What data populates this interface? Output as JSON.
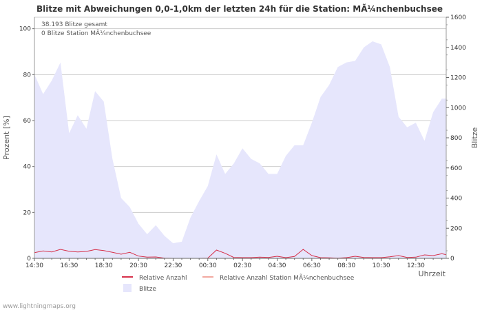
{
  "chart_data": {
    "type": "area+line",
    "title": "Blitze mit Abweichungen 0,0-1,0km der letzten 24h für die Station: MÃ¼nchenbuchsee",
    "info_lines": [
      "38.193 Blitze gesamt",
      "0 Blitze Station MÃ¼nchenbuchsee"
    ],
    "ylabel_left": "Prozent   [%]",
    "ylabel_right": "Blitze",
    "xlabel": "Uhrzeit",
    "ylim_left": [
      0,
      105
    ],
    "ylim_right": [
      0,
      1600
    ],
    "left_ticks": [
      0,
      20,
      40,
      60,
      80,
      100
    ],
    "right_ticks": [
      0,
      200,
      400,
      600,
      800,
      1000,
      1200,
      1400,
      1600
    ],
    "x_tick_labels": [
      "14:30",
      "16:30",
      "18:30",
      "20:30",
      "22:30",
      "00:30",
      "02:30",
      "04:30",
      "06:30",
      "08:30",
      "10:30",
      "12:30"
    ],
    "x_minutes": [
      0,
      30,
      60,
      90,
      120,
      150,
      180,
      210,
      240,
      270,
      300,
      330,
      360,
      390,
      420,
      450,
      480,
      510,
      540,
      570,
      600,
      630,
      660,
      690,
      720,
      750,
      780,
      810,
      840,
      870,
      900,
      930,
      960,
      990,
      1020,
      1050,
      1080,
      1110,
      1140,
      1170,
      1200,
      1230,
      1260,
      1290,
      1320,
      1350,
      1380,
      1410,
      1425
    ],
    "x_range_minutes": [
      0,
      1425
    ],
    "series": [
      {
        "name": "Relative Anzahl",
        "axis": "left",
        "color": "#d6304a",
        "values": [
          2.5,
          3.2,
          2.8,
          3.9,
          3.1,
          2.8,
          3.0,
          3.8,
          3.4,
          2.6,
          1.8,
          2.6,
          1.0,
          0.5,
          0.6,
          0.1,
          0,
          0,
          0,
          0,
          0.1,
          3.6,
          2.2,
          0.4,
          0.3,
          0.3,
          0.5,
          0.4,
          0.9,
          0.3,
          0.8,
          3.9,
          1.2,
          0.3,
          0.2,
          0.1,
          0.3,
          0.9,
          0.4,
          0.3,
          0.3,
          0.7,
          1.2,
          0.4,
          0.5,
          1.5,
          1.2,
          2.0,
          1.6
        ]
      },
      {
        "name": "Relative Anzahl Station MÃ¼nchenbuchsee",
        "axis": "left",
        "color": "#f2a8a0",
        "values": [
          0,
          0,
          0,
          0,
          0,
          0,
          0,
          0,
          0,
          0,
          0,
          0,
          0,
          0,
          0,
          0,
          0,
          0,
          0,
          0,
          0,
          0,
          0,
          0,
          0,
          0,
          0,
          0,
          0,
          0,
          0,
          0,
          0,
          0,
          0,
          0,
          0,
          0,
          0,
          0,
          0,
          0,
          0,
          0,
          0,
          0,
          0,
          0,
          0
        ]
      },
      {
        "name": "Blitze",
        "axis": "right",
        "color": "#e6e6fc",
        "values": [
          1220,
          1090,
          1180,
          1300,
          830,
          950,
          860,
          1110,
          1040,
          660,
          400,
          340,
          230,
          160,
          220,
          150,
          100,
          110,
          270,
          380,
          480,
          690,
          560,
          630,
          730,
          660,
          630,
          560,
          560,
          680,
          750,
          750,
          900,
          1070,
          1150,
          1270,
          1300,
          1310,
          1400,
          1440,
          1420,
          1270,
          940,
          870,
          900,
          780,
          970,
          1060,
          1060
        ]
      }
    ]
  },
  "legend": [
    {
      "label": "Relative Anzahl",
      "color": "#d6304a",
      "kind": "line"
    },
    {
      "label": "Relative Anzahl Station MÃ¼nchenbuchsee",
      "color": "#f2a8a0",
      "kind": "line"
    },
    {
      "label": "Blitze",
      "color": "#e6e6fc",
      "kind": "area"
    }
  ],
  "footer": "www.lightningmaps.org"
}
